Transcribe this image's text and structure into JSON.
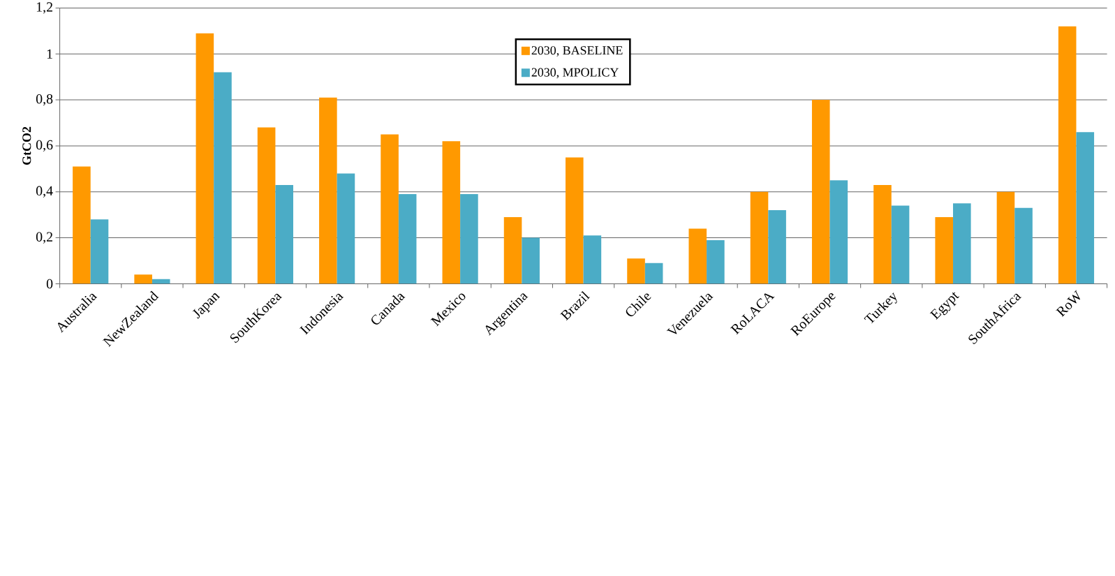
{
  "chart_data": {
    "type": "bar",
    "ylabel": "**GtCO2**",
    "categories": [
      "Australia",
      "NewZealand",
      "Japan",
      "SouthKorea",
      "Indonesia",
      "Canada",
      "Mexico",
      "Argentina",
      "Brazil",
      "Chile",
      "Venezuela",
      "RoLACA",
      "RoEurope",
      "Turkey",
      "Egypt",
      "SouthAfrica",
      "RoW"
    ],
    "series": [
      {
        "name": "2030, BASELINE",
        "color": "#ff9900",
        "values": [
          0.51,
          0.04,
          1.09,
          0.68,
          0.81,
          0.65,
          0.62,
          0.29,
          0.55,
          0.11,
          0.24,
          0.4,
          0.8,
          0.43,
          0.29,
          0.4,
          1.12
        ]
      },
      {
        "name": "2030, MPOLICY",
        "color": "#4bacc6",
        "values": [
          0.28,
          0.02,
          0.92,
          0.43,
          0.48,
          0.39,
          0.39,
          0.2,
          0.21,
          0.09,
          0.19,
          0.32,
          0.45,
          0.34,
          0.35,
          0.33,
          0.66
        ]
      }
    ],
    "ylim": [
      0,
      1.2
    ],
    "yticks": [
      0,
      {
        "value": 0.2,
        "label": "0,2"
      },
      {
        "value": 0.4,
        "label": "0,4"
      },
      {
        "value": 0.6,
        "label": "0,6"
      },
      {
        "value": 0.8,
        "label": "0,8"
      },
      1,
      {
        "value": 1.2,
        "label": "1,2"
      }
    ],
    "grid": "y",
    "legend": "top"
  }
}
